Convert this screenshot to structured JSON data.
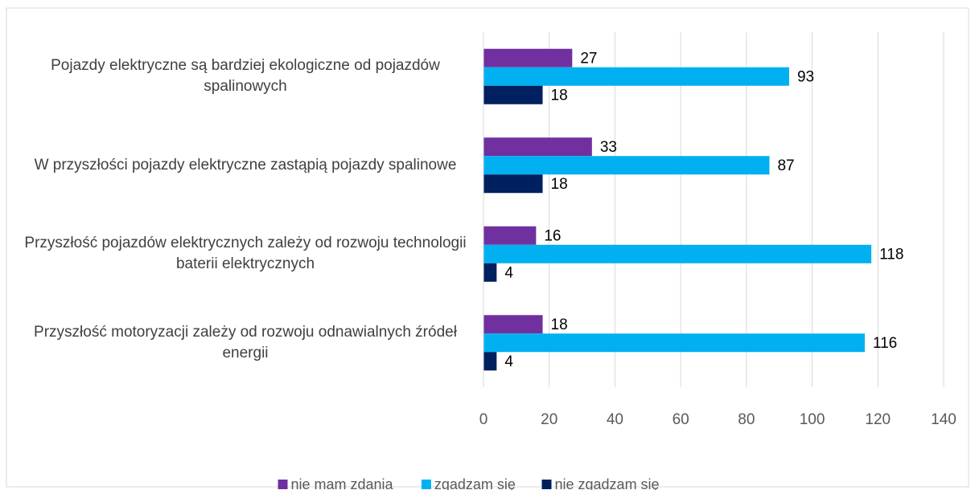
{
  "chart_data": {
    "type": "barh",
    "categories": [
      "Pojazdy elektryczne są bardziej ekologiczne od pojazdów spalinowych",
      "W przyszłości pojazdy elektryczne zastąpią pojazdy spalinowe",
      "Przyszłość pojazdów elektrycznych zależy od rozwoju technologii baterii elektrycznych",
      "Przyszłość motoryzacji zależy od rozwoju odnawialnych źródeł energii"
    ],
    "series": [
      {
        "name": "nie mam zdania",
        "color": "#7030a0",
        "values": [
          27,
          33,
          16,
          18
        ]
      },
      {
        "name": "zgadzam się",
        "color": "#00b0f0",
        "values": [
          93,
          87,
          118,
          116
        ]
      },
      {
        "name": "nie zgadzam się",
        "color": "#002060",
        "values": [
          18,
          18,
          4,
          4
        ]
      }
    ],
    "xlim": [
      0,
      140
    ],
    "xticks": [
      0,
      20,
      40,
      60,
      80,
      100,
      120,
      140
    ],
    "grid": true,
    "legend": "bottom"
  }
}
